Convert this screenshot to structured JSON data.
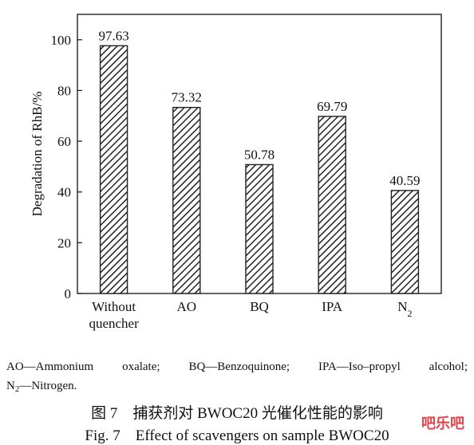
{
  "chart_data": {
    "type": "bar",
    "categories": [
      "Without quencher",
      "AO",
      "BQ",
      "IPA",
      "N2"
    ],
    "category_lines": [
      [
        "Without",
        "quencher"
      ],
      [
        "AO"
      ],
      [
        "BQ"
      ],
      [
        "IPA"
      ],
      [
        "N",
        "2"
      ]
    ],
    "values": [
      97.63,
      73.32,
      50.78,
      69.79,
      40.59
    ],
    "value_labels": [
      "97.63",
      "73.32",
      "50.78",
      "69.79",
      "40.59"
    ],
    "ylabel": "Degradation of RhB/%",
    "ylim": [
      0,
      110
    ],
    "yticks": [
      0,
      20,
      40,
      60,
      80,
      100
    ],
    "grid": false,
    "bar_fill": "diagonal-hatch",
    "bar_color": "#222222"
  },
  "notes": {
    "line1": "AO—Ammonium oxalate; BQ—Benzoquinone; IPA—Iso–propyl alcohol;",
    "line2_main": "N",
    "line2_sub": "2",
    "line2_rest": "—Nitrogen."
  },
  "captions": {
    "cn": "图 7　捕获剂对 BWOC20 光催化性能的影响",
    "en": "Fig. 7　Effect of scavengers on sample BWOC20"
  },
  "watermark": "吧乐吧"
}
